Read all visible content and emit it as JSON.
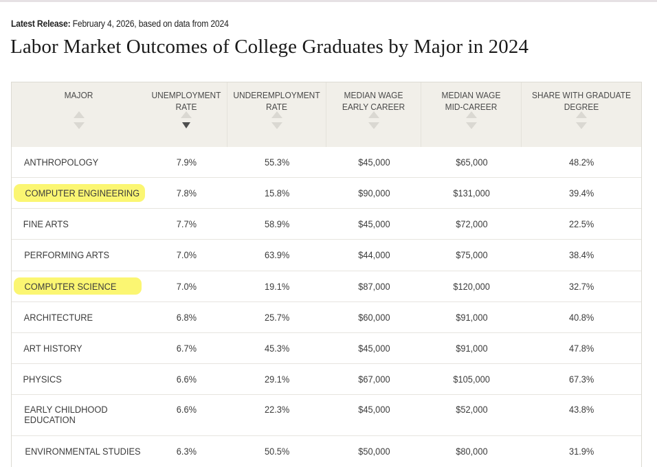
{
  "release": {
    "label": "Latest Release:",
    "text": " February 4, 2026, based on data from 2024"
  },
  "title": "Labor Market Outcomes of College Graduates by Major in 2024",
  "table": {
    "columns": [
      {
        "line1": "MAJOR",
        "line2": ""
      },
      {
        "line1": "UNEMPLOYMENT",
        "line2": "RATE"
      },
      {
        "line1": "UNDEREMPLOYMENT",
        "line2": "RATE"
      },
      {
        "line1": "MEDIAN WAGE",
        "line2": "EARLY CAREER"
      },
      {
        "line1": "MEDIAN WAGE",
        "line2": "MID-CAREER"
      },
      {
        "line1": "SHARE WITH GRADUATE",
        "line2": "DEGREE"
      }
    ],
    "sort_column": "UNEMPLOYMENT RATE",
    "sort_direction": "descending",
    "highlight_color": "#fbf66a",
    "rows": [
      {
        "major": "ANTHROPOLOGY",
        "unemployment": "7.9%",
        "underemployment": "55.3%",
        "early": "$45,000",
        "mid": "$65,000",
        "grad": "48.2%",
        "highlighted": false
      },
      {
        "major": "COMPUTER ENGINEERING",
        "unemployment": "7.8%",
        "underemployment": "15.8%",
        "early": "$90,000",
        "mid": "$131,000",
        "grad": "39.4%",
        "highlighted": true
      },
      {
        "major": "FINE ARTS",
        "unemployment": "7.7%",
        "underemployment": "58.9%",
        "early": "$45,000",
        "mid": "$72,000",
        "grad": "22.5%",
        "highlighted": false
      },
      {
        "major": "PERFORMING ARTS",
        "unemployment": "7.0%",
        "underemployment": "63.9%",
        "early": "$44,000",
        "mid": "$75,000",
        "grad": "38.4%",
        "highlighted": false
      },
      {
        "major": "COMPUTER SCIENCE",
        "unemployment": "7.0%",
        "underemployment": "19.1%",
        "early": "$87,000",
        "mid": "$120,000",
        "grad": "32.7%",
        "highlighted": true
      },
      {
        "major": "ARCHITECTURE",
        "unemployment": "6.8%",
        "underemployment": "25.7%",
        "early": "$60,000",
        "mid": "$91,000",
        "grad": "40.8%",
        "highlighted": false
      },
      {
        "major": "ART HISTORY",
        "unemployment": "6.7%",
        "underemployment": "45.3%",
        "early": "$45,000",
        "mid": "$91,000",
        "grad": "47.8%",
        "highlighted": false
      },
      {
        "major": "PHYSICS",
        "unemployment": "6.6%",
        "underemployment": "29.1%",
        "early": "$67,000",
        "mid": "$105,000",
        "grad": "67.3%",
        "highlighted": false
      },
      {
        "major": "EARLY CHILDHOOD EDUCATION",
        "unemployment": "6.6%",
        "underemployment": "22.3%",
        "early": "$45,000",
        "mid": "$52,000",
        "grad": "43.8%",
        "highlighted": false
      },
      {
        "major": "ENVIRONMENTAL STUDIES",
        "unemployment": "6.3%",
        "underemployment": "50.5%",
        "early": "$50,000",
        "mid": "$80,000",
        "grad": "31.9%",
        "highlighted": false
      }
    ]
  }
}
